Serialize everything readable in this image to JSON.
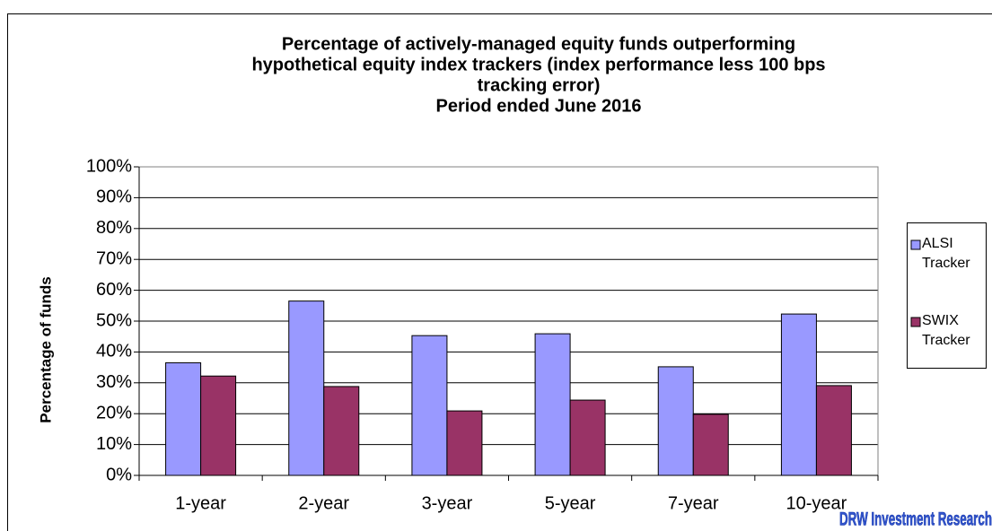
{
  "chart_data": {
    "type": "bar",
    "title": [
      "Percentage of actively-managed equity funds outperforming",
      "hypothetical equity index trackers (index performance less 100 bps",
      "tracking error)"
    ],
    "subtitle": "Period ended June 2016",
    "y_label": "Percentage of funds",
    "watermark": "DRW Investment Research",
    "categories": [
      "1-year",
      "2-year",
      "3-year",
      "5-year",
      "7-year",
      "10-year"
    ],
    "series": [
      {
        "name": "ALSI Tracker",
        "color": "#9999ff",
        "values": [
          36.5,
          56.5,
          45.3,
          45.9,
          35.2,
          52.3
        ]
      },
      {
        "name": "SWIX Tracker",
        "color": "#993366",
        "values": [
          32.2,
          28.8,
          20.9,
          24.4,
          19.8,
          29.1
        ]
      }
    ],
    "ylim": [
      0,
      100
    ],
    "yticks": [
      {
        "value": 0,
        "label": "0%"
      },
      {
        "value": 10,
        "label": "10%"
      },
      {
        "value": 20,
        "label": "20%"
      },
      {
        "value": 30,
        "label": "30%"
      },
      {
        "value": 40,
        "label": "40%"
      },
      {
        "value": 50,
        "label": "50%"
      },
      {
        "value": 60,
        "label": "60%"
      },
      {
        "value": 70,
        "label": "70%"
      },
      {
        "value": 80,
        "label": "80%"
      },
      {
        "value": 90,
        "label": "90%"
      },
      {
        "value": 100,
        "label": "100%"
      }
    ],
    "grid": true,
    "legend": "right"
  }
}
